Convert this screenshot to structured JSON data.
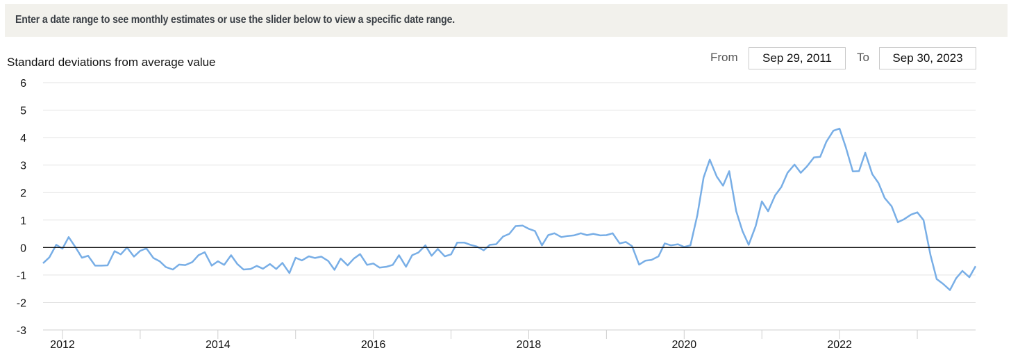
{
  "banner": {
    "text": "Enter a date range to see monthly estimates or use the slider below to view a specific date range."
  },
  "range": {
    "from_label": "From",
    "from_value": "Sep 29, 2011",
    "to_label": "To",
    "to_value": "Sep 30, 2023"
  },
  "colors": {
    "line": "#78aee6",
    "zero_line": "#111111",
    "grid": "#e3e3e3",
    "banner_bg": "#f2f1ec"
  },
  "chart_data": {
    "type": "line",
    "ylabel": "Standard deviations from average value",
    "xlabel": "",
    "ylim": [
      -3,
      6
    ],
    "yticks": [
      6,
      5,
      4,
      3,
      2,
      1,
      0,
      -1,
      -2,
      -3
    ],
    "xlim": [
      2011.75,
      2023.75
    ],
    "xticks": [
      2012,
      2014,
      2016,
      2018,
      2020,
      2022
    ],
    "grid": true,
    "series": [
      {
        "values": [
          [
            2011.75,
            -0.57
          ],
          [
            2011.83,
            -0.36
          ],
          [
            2011.92,
            0.1
          ],
          [
            2012.0,
            -0.04
          ],
          [
            2012.08,
            0.38
          ],
          [
            2012.17,
            0.0
          ],
          [
            2012.25,
            -0.37
          ],
          [
            2012.33,
            -0.3
          ],
          [
            2012.42,
            -0.66
          ],
          [
            2012.5,
            -0.66
          ],
          [
            2012.58,
            -0.65
          ],
          [
            2012.67,
            -0.13
          ],
          [
            2012.75,
            -0.25
          ],
          [
            2012.83,
            0.0
          ],
          [
            2012.92,
            -0.33
          ],
          [
            2013.0,
            -0.12
          ],
          [
            2013.08,
            -0.03
          ],
          [
            2013.17,
            -0.38
          ],
          [
            2013.25,
            -0.5
          ],
          [
            2013.33,
            -0.71
          ],
          [
            2013.42,
            -0.8
          ],
          [
            2013.5,
            -0.62
          ],
          [
            2013.58,
            -0.64
          ],
          [
            2013.67,
            -0.53
          ],
          [
            2013.75,
            -0.28
          ],
          [
            2013.83,
            -0.17
          ],
          [
            2013.92,
            -0.66
          ],
          [
            2014.0,
            -0.5
          ],
          [
            2014.08,
            -0.63
          ],
          [
            2014.17,
            -0.28
          ],
          [
            2014.25,
            -0.6
          ],
          [
            2014.33,
            -0.8
          ],
          [
            2014.42,
            -0.78
          ],
          [
            2014.5,
            -0.67
          ],
          [
            2014.58,
            -0.77
          ],
          [
            2014.67,
            -0.6
          ],
          [
            2014.75,
            -0.78
          ],
          [
            2014.83,
            -0.56
          ],
          [
            2014.92,
            -0.93
          ],
          [
            2015.0,
            -0.37
          ],
          [
            2015.08,
            -0.47
          ],
          [
            2015.17,
            -0.32
          ],
          [
            2015.25,
            -0.38
          ],
          [
            2015.33,
            -0.33
          ],
          [
            2015.42,
            -0.49
          ],
          [
            2015.5,
            -0.81
          ],
          [
            2015.58,
            -0.4
          ],
          [
            2015.67,
            -0.65
          ],
          [
            2015.75,
            -0.4
          ],
          [
            2015.83,
            -0.24
          ],
          [
            2015.92,
            -0.63
          ],
          [
            2016.0,
            -0.58
          ],
          [
            2016.08,
            -0.73
          ],
          [
            2016.17,
            -0.7
          ],
          [
            2016.25,
            -0.63
          ],
          [
            2016.33,
            -0.28
          ],
          [
            2016.42,
            -0.7
          ],
          [
            2016.5,
            -0.28
          ],
          [
            2016.58,
            -0.18
          ],
          [
            2016.67,
            0.08
          ],
          [
            2016.75,
            -0.3
          ],
          [
            2016.83,
            -0.05
          ],
          [
            2016.92,
            -0.32
          ],
          [
            2017.0,
            -0.25
          ],
          [
            2017.08,
            0.18
          ],
          [
            2017.17,
            0.18
          ],
          [
            2017.25,
            0.1
          ],
          [
            2017.33,
            0.04
          ],
          [
            2017.42,
            -0.1
          ],
          [
            2017.5,
            0.1
          ],
          [
            2017.58,
            0.12
          ],
          [
            2017.67,
            0.4
          ],
          [
            2017.75,
            0.5
          ],
          [
            2017.83,
            0.78
          ],
          [
            2017.92,
            0.8
          ],
          [
            2018.0,
            0.68
          ],
          [
            2018.08,
            0.6
          ],
          [
            2018.17,
            0.08
          ],
          [
            2018.25,
            0.45
          ],
          [
            2018.33,
            0.52
          ],
          [
            2018.42,
            0.38
          ],
          [
            2018.5,
            0.42
          ],
          [
            2018.58,
            0.44
          ],
          [
            2018.67,
            0.52
          ],
          [
            2018.75,
            0.45
          ],
          [
            2018.83,
            0.5
          ],
          [
            2018.92,
            0.44
          ],
          [
            2019.0,
            0.45
          ],
          [
            2019.08,
            0.52
          ],
          [
            2019.17,
            0.15
          ],
          [
            2019.25,
            0.2
          ],
          [
            2019.33,
            0.05
          ],
          [
            2019.42,
            -0.62
          ],
          [
            2019.5,
            -0.48
          ],
          [
            2019.58,
            -0.45
          ],
          [
            2019.67,
            -0.32
          ],
          [
            2019.75,
            0.15
          ],
          [
            2019.83,
            0.08
          ],
          [
            2019.92,
            0.12
          ],
          [
            2020.0,
            0.02
          ],
          [
            2020.08,
            0.08
          ],
          [
            2020.17,
            1.18
          ],
          [
            2020.25,
            2.55
          ],
          [
            2020.33,
            3.2
          ],
          [
            2020.42,
            2.58
          ],
          [
            2020.5,
            2.25
          ],
          [
            2020.58,
            2.78
          ],
          [
            2020.67,
            1.32
          ],
          [
            2020.75,
            0.6
          ],
          [
            2020.83,
            0.1
          ],
          [
            2020.92,
            0.78
          ],
          [
            2021.0,
            1.68
          ],
          [
            2021.08,
            1.32
          ],
          [
            2021.17,
            1.9
          ],
          [
            2021.25,
            2.2
          ],
          [
            2021.33,
            2.72
          ],
          [
            2021.42,
            3.02
          ],
          [
            2021.5,
            2.72
          ],
          [
            2021.58,
            2.95
          ],
          [
            2021.67,
            3.28
          ],
          [
            2021.75,
            3.3
          ],
          [
            2021.83,
            3.85
          ],
          [
            2021.92,
            4.25
          ],
          [
            2022.0,
            4.33
          ],
          [
            2022.08,
            3.65
          ],
          [
            2022.17,
            2.77
          ],
          [
            2022.25,
            2.78
          ],
          [
            2022.33,
            3.45
          ],
          [
            2022.42,
            2.67
          ],
          [
            2022.5,
            2.35
          ],
          [
            2022.58,
            1.8
          ],
          [
            2022.67,
            1.5
          ],
          [
            2022.75,
            0.92
          ],
          [
            2022.83,
            1.03
          ],
          [
            2022.92,
            1.2
          ],
          [
            2023.0,
            1.28
          ],
          [
            2023.08,
            1.0
          ],
          [
            2023.17,
            -0.28
          ],
          [
            2023.25,
            -1.15
          ],
          [
            2023.33,
            -1.32
          ],
          [
            2023.42,
            -1.55
          ],
          [
            2023.5,
            -1.12
          ],
          [
            2023.58,
            -0.85
          ],
          [
            2023.67,
            -1.08
          ],
          [
            2023.75,
            -0.68
          ]
        ]
      }
    ]
  }
}
